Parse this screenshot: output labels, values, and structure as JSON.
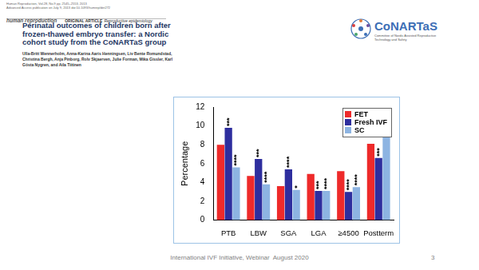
{
  "header": {
    "citation_lines": [
      "Human Reproduction, Vol.28, No.9 pp. 2545–2553, 2013",
      "Advanced Access publication on July 9, 2013 doi:10.1093/humrep/det272"
    ],
    "journal": "human reproduction",
    "article_type": "ORIGINAL ARTICLE",
    "article_topic": "Reproductive epidemiology",
    "title": "Perinatal outcomes of children born after frozen-thawed embryo transfer: a Nordic cohort study from the CoNARTaS group",
    "authors": "Ulla-Britt Wennerholm, Anna-Karina Aaris Henningsen, Liv Bente Romundstad, Christina Bergh, Anja Pinborg, Rolv Skjaerven, Julie Forman, Mika Gissler, Karl Gösta Nygren, and Aila Tiitinen"
  },
  "logo": {
    "name": "CoNARTaS",
    "subtitle": "Committee of Nordic Assisted Reproductive Technology and Safety"
  },
  "footer": {
    "text": "International IVF Initiative, Webinar  August 2020",
    "page": 3
  },
  "chart_data": {
    "type": "bar",
    "y_label": "Percentage",
    "categories": [
      "PTB",
      "LBW",
      "SGA",
      "LGA",
      "≥4500",
      "Postterm"
    ],
    "series": [
      {
        "name": "FET",
        "color": "#ee2a2a",
        "values": [
          8.0,
          4.7,
          3.6,
          4.9,
          5.2,
          8.1
        ],
        "annotations": [
          null,
          null,
          null,
          null,
          null,
          null
        ]
      },
      {
        "name": "Fresh IVF",
        "color": "#2e2e9e",
        "values": [
          9.8,
          6.5,
          5.4,
          3.1,
          3.0,
          6.6
        ],
        "annotations": [
          "***",
          "***",
          "****",
          "***",
          "****",
          "***"
        ]
      },
      {
        "name": "SC",
        "color": "#8db4e2",
        "values": [
          5.6,
          3.8,
          3.2,
          3.1,
          3.5,
          8.8
        ],
        "annotations": [
          "****",
          "****",
          "*",
          "****",
          "****",
          null
        ]
      }
    ],
    "ylim": [
      0,
      12
    ],
    "yticks": [
      0,
      2,
      4,
      6,
      8,
      10,
      12
    ],
    "grid": false,
    "legend": "upper right"
  }
}
